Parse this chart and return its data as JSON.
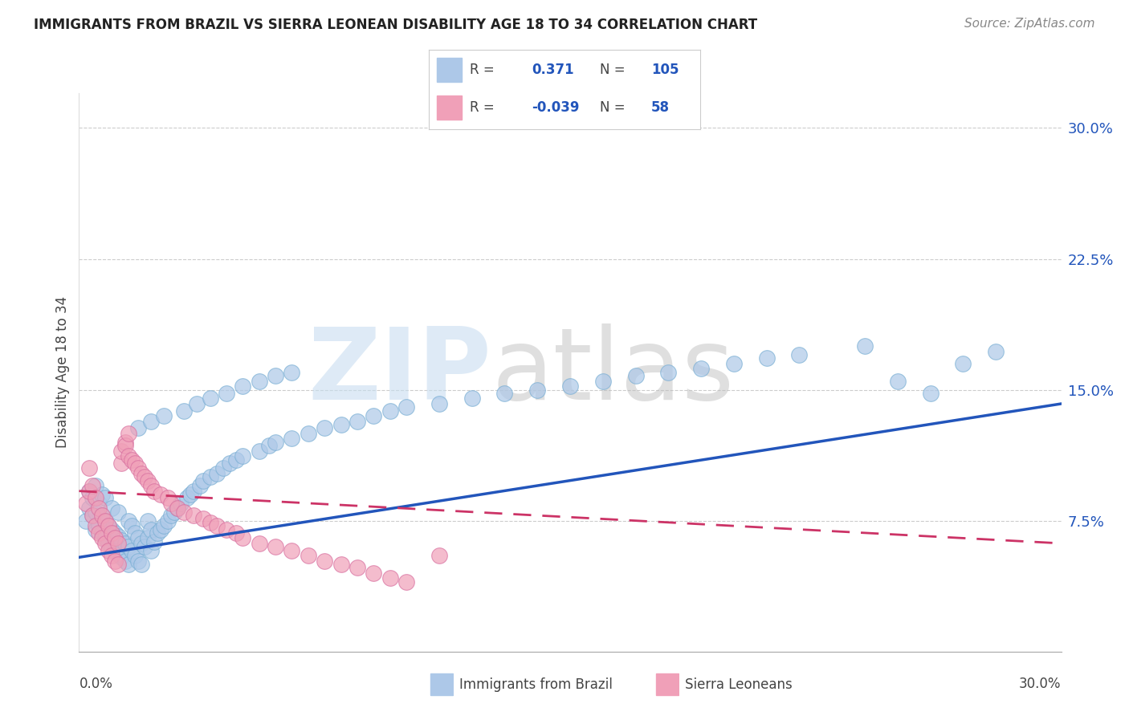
{
  "title": "IMMIGRANTS FROM BRAZIL VS SIERRA LEONEAN DISABILITY AGE 18 TO 34 CORRELATION CHART",
  "source": "Source: ZipAtlas.com",
  "ylabel": "Disability Age 18 to 34",
  "ytick_values": [
    0.075,
    0.15,
    0.225,
    0.3
  ],
  "ytick_labels": [
    "7.5%",
    "15.0%",
    "22.5%",
    "30.0%"
  ],
  "xlim": [
    0.0,
    0.3
  ],
  "ylim": [
    0.0,
    0.32
  ],
  "brazil_color": "#adc8e8",
  "brazil_edge": "#7aafd4",
  "sierra_color": "#f0a0b8",
  "sierra_edge": "#d870a0",
  "brazil_line_color": "#2255bb",
  "sierra_line_color": "#cc3366",
  "legend_R_brazil": "0.371",
  "legend_N_brazil": "105",
  "legend_R_sierra": "-0.039",
  "legend_N_sierra": "58",
  "brazil_trend_x0": 0.0,
  "brazil_trend_y0": 0.054,
  "brazil_trend_x1": 0.3,
  "brazil_trend_y1": 0.142,
  "sierra_trend_x0": 0.0,
  "sierra_trend_y0": 0.092,
  "sierra_trend_x1": 0.3,
  "sierra_trend_y1": 0.062,
  "brazil_scatter_x": [
    0.002,
    0.003,
    0.003,
    0.004,
    0.004,
    0.005,
    0.005,
    0.005,
    0.006,
    0.006,
    0.007,
    0.007,
    0.007,
    0.008,
    0.008,
    0.008,
    0.009,
    0.009,
    0.01,
    0.01,
    0.01,
    0.011,
    0.011,
    0.012,
    0.012,
    0.012,
    0.013,
    0.013,
    0.014,
    0.014,
    0.015,
    0.015,
    0.015,
    0.016,
    0.016,
    0.017,
    0.017,
    0.018,
    0.018,
    0.019,
    0.019,
    0.02,
    0.021,
    0.021,
    0.022,
    0.022,
    0.023,
    0.024,
    0.025,
    0.026,
    0.027,
    0.028,
    0.029,
    0.03,
    0.031,
    0.033,
    0.034,
    0.035,
    0.037,
    0.038,
    0.04,
    0.042,
    0.044,
    0.046,
    0.048,
    0.05,
    0.055,
    0.058,
    0.06,
    0.065,
    0.07,
    0.075,
    0.08,
    0.085,
    0.09,
    0.095,
    0.1,
    0.11,
    0.12,
    0.13,
    0.14,
    0.15,
    0.16,
    0.17,
    0.18,
    0.19,
    0.2,
    0.21,
    0.22,
    0.24,
    0.25,
    0.26,
    0.27,
    0.28,
    0.018,
    0.022,
    0.026,
    0.032,
    0.036,
    0.04,
    0.045,
    0.05,
    0.055,
    0.06,
    0.065
  ],
  "brazil_scatter_y": [
    0.075,
    0.082,
    0.092,
    0.078,
    0.088,
    0.07,
    0.08,
    0.095,
    0.072,
    0.085,
    0.068,
    0.078,
    0.09,
    0.065,
    0.075,
    0.088,
    0.062,
    0.072,
    0.06,
    0.07,
    0.082,
    0.058,
    0.068,
    0.056,
    0.066,
    0.08,
    0.054,
    0.064,
    0.052,
    0.062,
    0.05,
    0.06,
    0.075,
    0.058,
    0.072,
    0.055,
    0.068,
    0.052,
    0.065,
    0.05,
    0.062,
    0.06,
    0.065,
    0.075,
    0.058,
    0.07,
    0.063,
    0.068,
    0.07,
    0.072,
    0.075,
    0.078,
    0.08,
    0.082,
    0.085,
    0.088,
    0.09,
    0.092,
    0.095,
    0.098,
    0.1,
    0.102,
    0.105,
    0.108,
    0.11,
    0.112,
    0.115,
    0.118,
    0.12,
    0.122,
    0.125,
    0.128,
    0.13,
    0.132,
    0.135,
    0.138,
    0.14,
    0.142,
    0.145,
    0.148,
    0.15,
    0.152,
    0.155,
    0.158,
    0.16,
    0.162,
    0.165,
    0.168,
    0.17,
    0.175,
    0.155,
    0.148,
    0.165,
    0.172,
    0.128,
    0.132,
    0.135,
    0.138,
    0.142,
    0.145,
    0.148,
    0.152,
    0.155,
    0.158,
    0.16
  ],
  "sierra_scatter_x": [
    0.002,
    0.003,
    0.003,
    0.004,
    0.004,
    0.005,
    0.005,
    0.006,
    0.006,
    0.007,
    0.007,
    0.008,
    0.008,
    0.009,
    0.009,
    0.01,
    0.01,
    0.011,
    0.011,
    0.012,
    0.012,
    0.013,
    0.013,
    0.014,
    0.014,
    0.015,
    0.015,
    0.016,
    0.017,
    0.018,
    0.019,
    0.02,
    0.021,
    0.022,
    0.023,
    0.025,
    0.027,
    0.028,
    0.03,
    0.032,
    0.035,
    0.038,
    0.04,
    0.042,
    0.045,
    0.048,
    0.05,
    0.055,
    0.06,
    0.065,
    0.07,
    0.075,
    0.08,
    0.085,
    0.09,
    0.095,
    0.1,
    0.11
  ],
  "sierra_scatter_y": [
    0.085,
    0.092,
    0.105,
    0.078,
    0.095,
    0.072,
    0.088,
    0.068,
    0.082,
    0.065,
    0.078,
    0.062,
    0.075,
    0.058,
    0.072,
    0.055,
    0.068,
    0.052,
    0.065,
    0.05,
    0.062,
    0.108,
    0.115,
    0.12,
    0.118,
    0.112,
    0.125,
    0.11,
    0.108,
    0.105,
    0.102,
    0.1,
    0.098,
    0.095,
    0.092,
    0.09,
    0.088,
    0.085,
    0.082,
    0.08,
    0.078,
    0.076,
    0.074,
    0.072,
    0.07,
    0.068,
    0.065,
    0.062,
    0.06,
    0.058,
    0.055,
    0.052,
    0.05,
    0.048,
    0.045,
    0.042,
    0.04,
    0.055
  ]
}
